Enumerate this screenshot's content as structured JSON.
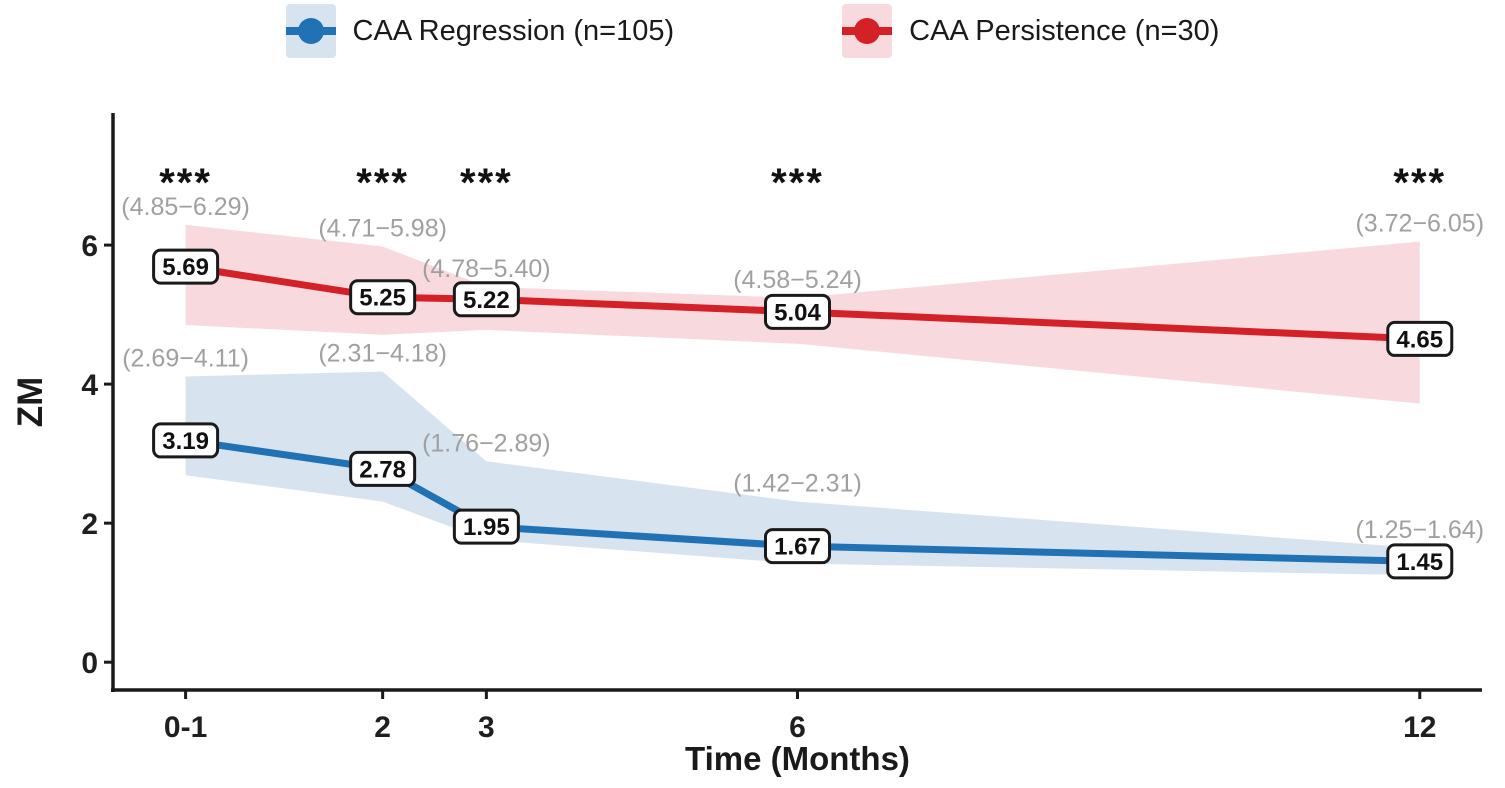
{
  "figure": {
    "legend": [
      {
        "label": "CAA Regression (n=105)"
      },
      {
        "label": "CAA Persistence (n=30)"
      }
    ]
  },
  "chart_data": {
    "type": "line",
    "title": "",
    "xlabel": "Time (Months)",
    "ylabel": "ZM",
    "categories": [
      "0-1",
      "2",
      "3",
      "6",
      "12"
    ],
    "x_months": [
      0.1,
      2,
      3,
      6,
      12
    ],
    "xlim": [
      -0.6,
      12.6
    ],
    "ylim": [
      -0.4,
      7.9
    ],
    "y_ticks": [
      0,
      2,
      4,
      6
    ],
    "grid": "off",
    "legend_position": "top",
    "significance": [
      "***",
      "***",
      "***",
      "***",
      "***"
    ],
    "series": [
      {
        "name": "CAA Regression (n=105)",
        "values": [
          3.19,
          2.78,
          1.95,
          1.67,
          1.45
        ],
        "value_labels": [
          "3.19",
          "2.78",
          "1.95",
          "1.67",
          "1.45"
        ],
        "ci_lower": [
          2.69,
          2.31,
          1.76,
          1.42,
          1.25
        ],
        "ci_upper": [
          4.11,
          4.18,
          2.89,
          2.31,
          1.64
        ],
        "ci_labels": [
          "(2.69−4.11)",
          "(2.31−4.18)",
          "(1.76−2.89)",
          "(1.42−2.31)",
          "(1.25−1.64)"
        ],
        "line_color": "#2171b5",
        "band_color": "#d7e3ef"
      },
      {
        "name": "CAA Persistence (n=30)",
        "values": [
          5.69,
          5.25,
          5.22,
          5.04,
          4.65
        ],
        "value_labels": [
          "5.69",
          "5.25",
          "5.22",
          "5.04",
          "4.65"
        ],
        "ci_lower": [
          4.85,
          4.71,
          4.78,
          4.58,
          3.72
        ],
        "ci_upper": [
          6.29,
          5.98,
          5.4,
          5.24,
          6.05
        ],
        "ci_labels": [
          "(4.85−6.29)",
          "(4.71−5.98)",
          "(4.78−5.40)",
          "(4.58−5.24)",
          "(3.72−6.05)"
        ],
        "line_color": "#d32127",
        "band_color": "#f8dade"
      }
    ],
    "colors": {
      "axis": "#1a1a1a",
      "tick_label": "#1f1f1f",
      "ci_label": "#a0a0a0",
      "star": "#111111",
      "value_box_bg": "#ffffff",
      "value_box_border": "#1a1a1a"
    }
  }
}
